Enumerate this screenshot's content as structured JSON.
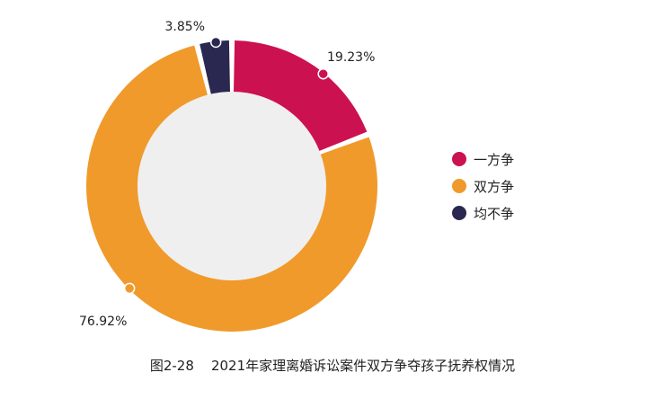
{
  "chart_data": {
    "type": "pie",
    "title": "",
    "categories": [
      "一方争",
      "双方争",
      "均不争"
    ],
    "values": [
      19.23,
      76.92,
      3.85
    ],
    "value_labels": [
      "19.23%",
      "76.92%",
      "3.85%"
    ],
    "colors": [
      "#cc1150",
      "#f09a2b",
      "#2a2850"
    ],
    "legend_position": "right"
  },
  "caption": {
    "figure_no": "图2-28",
    "text": "2021年家理离婚诉讼案件双方争夺孩子抚养权情况"
  },
  "colors": {
    "inner_disc": "#efefef",
    "background": "#ffffff"
  }
}
